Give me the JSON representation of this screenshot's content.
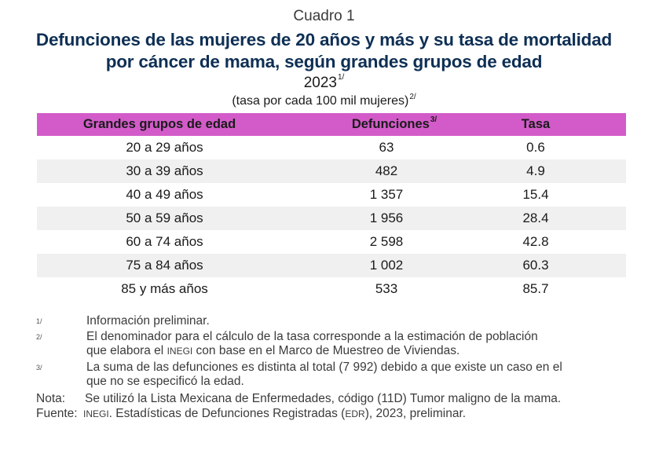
{
  "header": {
    "cuadro": "Cuadro 1",
    "title_line1": "Defunciones de las mujeres de 20 años y más y su tasa de mortalidad",
    "title_line2": "por cáncer de mama, según grandes grupos de edad",
    "year": "2023",
    "year_note": "1/",
    "units": "(tasa por cada 100 mil mujeres)",
    "units_note": "2/"
  },
  "colors": {
    "title": "#0e2f54",
    "table_header_bg": "#d35bc9",
    "alt_row_bg": "#f0f0f0"
  },
  "table": {
    "columns": [
      {
        "label": "Grandes grupos de edad",
        "note": ""
      },
      {
        "label": "Defunciones",
        "note": "3/"
      },
      {
        "label": "Tasa",
        "note": ""
      }
    ],
    "rows": [
      {
        "group": "20 a 29 años",
        "defunciones": "63",
        "tasa": "0.6"
      },
      {
        "group": "30 a 39 años",
        "defunciones": "482",
        "tasa": "4.9"
      },
      {
        "group": "40 a 49 años",
        "defunciones": "1 357",
        "tasa": "15.4"
      },
      {
        "group": "50 a 59 años",
        "defunciones": "1 956",
        "tasa": "28.4"
      },
      {
        "group": "60 a 74 años",
        "defunciones": "2 598",
        "tasa": "42.8"
      },
      {
        "group": "75 a 84 años",
        "defunciones": "1 002",
        "tasa": "60.3"
      },
      {
        "group": "85 y más años",
        "defunciones": "533",
        "tasa": "85.7"
      }
    ]
  },
  "footnotes": [
    {
      "mark": "1/",
      "lines": [
        "Información preliminar."
      ]
    },
    {
      "mark": "2/",
      "line1": "El denominador para el cálculo de la tasa corresponde a la estimación de población",
      "line2_pre": "que elabora el ",
      "line2_abbr": "INEGI",
      "line2_post": " con base en el Marco de Muestreo de Viviendas."
    },
    {
      "mark": "3/",
      "line1": "La suma de las defunciones es distinta al total (7 992) debido a que existe un caso en el",
      "line2": "que no se especificó la edad."
    }
  ],
  "nota": {
    "label": "Nota:",
    "text": "Se utilizó la Lista Mexicana de Enfermedades, código (11D) Tumor maligno de la mama."
  },
  "fuente": {
    "label": "Fuente:",
    "abbr1": "INEGI",
    "text1": ". Estadísticas de Defunciones Registradas (",
    "abbr2": "EDR",
    "text2": "), 2023, preliminar."
  }
}
